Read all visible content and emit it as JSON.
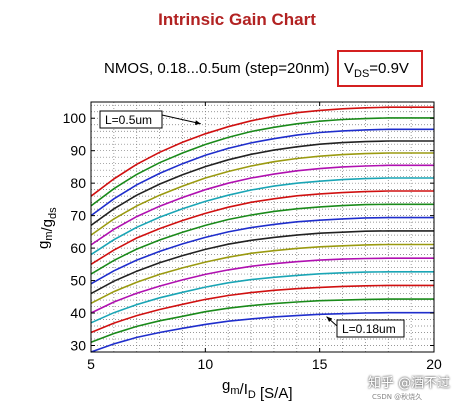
{
  "chart_data": {
    "type": "line",
    "title": "Intrinsic Gain Chart",
    "subtitle": "NMOS, 0.18...0.5um (step=20nm)",
    "vds_label": "V_DS=0.9V",
    "xlabel": "gm/ID [S/A]",
    "ylabel": "gm/gds",
    "xlim": [
      5,
      20
    ],
    "ylim": [
      28,
      105
    ],
    "xticks": [
      5,
      10,
      15,
      20
    ],
    "yticks": [
      30,
      40,
      50,
      60,
      70,
      80,
      90,
      100
    ],
    "grid": true,
    "annotations": [
      {
        "text": "L=0.5um",
        "arrow_to": {
          "x": 9.8,
          "y": 98.3
        }
      },
      {
        "text": "L=0.18um",
        "arrow_to": {
          "x": 15.3,
          "y": 38.9
        }
      }
    ],
    "x": [
      5,
      6,
      7,
      8,
      9,
      10,
      11,
      12,
      13,
      14,
      15,
      16,
      17,
      18,
      19,
      20
    ],
    "series": [
      {
        "color": "#1f2ecc",
        "values": [
          28.0,
          30.5,
          32.5,
          34.0,
          35.3,
          36.5,
          37.5,
          38.2,
          38.8,
          39.2,
          39.6,
          39.8,
          40.0,
          40.1,
          40.1,
          40.1
        ]
      },
      {
        "color": "#1a8a1a",
        "values": [
          31.0,
          33.7,
          35.9,
          37.6,
          39.0,
          40.4,
          41.5,
          42.3,
          42.9,
          43.4,
          43.8,
          44.0,
          44.2,
          44.3,
          44.3,
          44.3
        ]
      },
      {
        "color": "#d01010",
        "values": [
          34.0,
          36.9,
          39.2,
          41.1,
          42.7,
          44.2,
          45.4,
          46.3,
          47.0,
          47.5,
          47.9,
          48.2,
          48.4,
          48.5,
          48.5,
          48.5
        ]
      },
      {
        "color": "#1aa5b5",
        "values": [
          37.0,
          40.1,
          42.6,
          44.7,
          46.4,
          48.0,
          49.3,
          50.3,
          51.0,
          51.6,
          52.1,
          52.4,
          52.6,
          52.7,
          52.7,
          52.7
        ]
      },
      {
        "color": "#b010b0",
        "values": [
          40.0,
          43.4,
          46.1,
          48.3,
          50.2,
          51.9,
          53.3,
          54.4,
          55.2,
          55.8,
          56.3,
          56.6,
          56.8,
          56.9,
          56.9,
          56.9
        ]
      },
      {
        "color": "#9a9a10",
        "values": [
          43.0,
          46.6,
          49.5,
          51.9,
          53.9,
          55.7,
          57.2,
          58.4,
          59.2,
          59.9,
          60.4,
          60.7,
          61.0,
          61.1,
          61.1,
          61.1
        ]
      },
      {
        "color": "#222222",
        "values": [
          46.0,
          49.8,
          52.9,
          55.5,
          57.7,
          59.6,
          61.2,
          62.4,
          63.3,
          64.0,
          64.6,
          64.9,
          65.2,
          65.3,
          65.3,
          65.3
        ]
      },
      {
        "color": "#1f2ecc",
        "values": [
          49.0,
          53.0,
          56.3,
          59.0,
          61.3,
          63.3,
          65.0,
          66.3,
          67.3,
          68.1,
          68.6,
          69.0,
          69.3,
          69.4,
          69.4,
          69.4
        ]
      },
      {
        "color": "#1a8a1a",
        "values": [
          52.0,
          56.2,
          59.7,
          62.5,
          64.9,
          67.0,
          68.8,
          70.2,
          71.3,
          72.1,
          72.7,
          73.1,
          73.4,
          73.5,
          73.5,
          73.5
        ]
      },
      {
        "color": "#d01010",
        "values": [
          55.0,
          59.4,
          63.1,
          66.0,
          68.5,
          70.7,
          72.6,
          74.1,
          75.2,
          76.1,
          76.7,
          77.1,
          77.4,
          77.6,
          77.6,
          77.6
        ]
      },
      {
        "color": "#1aa5b5",
        "values": [
          58.0,
          62.6,
          66.4,
          69.5,
          72.1,
          74.4,
          76.3,
          77.9,
          79.1,
          80.0,
          80.6,
          81.1,
          81.4,
          81.6,
          81.6,
          81.6
        ]
      },
      {
        "color": "#b010b0",
        "values": [
          61.0,
          65.8,
          69.7,
          72.9,
          75.6,
          78.0,
          80.0,
          81.6,
          82.8,
          83.8,
          84.5,
          85.0,
          85.3,
          85.5,
          85.5,
          85.5
        ]
      },
      {
        "color": "#9a9a10",
        "values": [
          64.0,
          69.0,
          73.0,
          76.3,
          79.1,
          81.6,
          83.6,
          85.3,
          86.6,
          87.6,
          88.3,
          88.8,
          89.1,
          89.3,
          89.3,
          89.3
        ]
      },
      {
        "color": "#222222",
        "values": [
          67.0,
          72.1,
          76.3,
          79.7,
          82.6,
          85.1,
          87.2,
          88.9,
          90.2,
          91.2,
          92.0,
          92.5,
          92.8,
          93.0,
          93.0,
          93.0
        ]
      },
      {
        "color": "#1f2ecc",
        "values": [
          70.0,
          75.2,
          79.5,
          83.0,
          86.0,
          88.6,
          90.7,
          92.4,
          93.7,
          94.8,
          95.6,
          96.1,
          96.4,
          96.6,
          96.6,
          96.6
        ]
      },
      {
        "color": "#1a8a1a",
        "values": [
          73.0,
          78.3,
          82.7,
          86.3,
          89.3,
          91.9,
          94.1,
          95.9,
          97.2,
          98.3,
          99.1,
          99.6,
          99.9,
          100.1,
          100.1,
          100.1
        ]
      },
      {
        "color": "#d01010",
        "values": [
          76.0,
          81.3,
          85.8,
          89.5,
          92.6,
          95.2,
          97.4,
          99.2,
          100.6,
          101.7,
          102.4,
          102.9,
          103.2,
          103.4,
          103.4,
          103.4
        ]
      }
    ]
  },
  "watermark": {
    "text": "知乎 @酒不过",
    "sub": "CSDN @秋烧久"
  }
}
